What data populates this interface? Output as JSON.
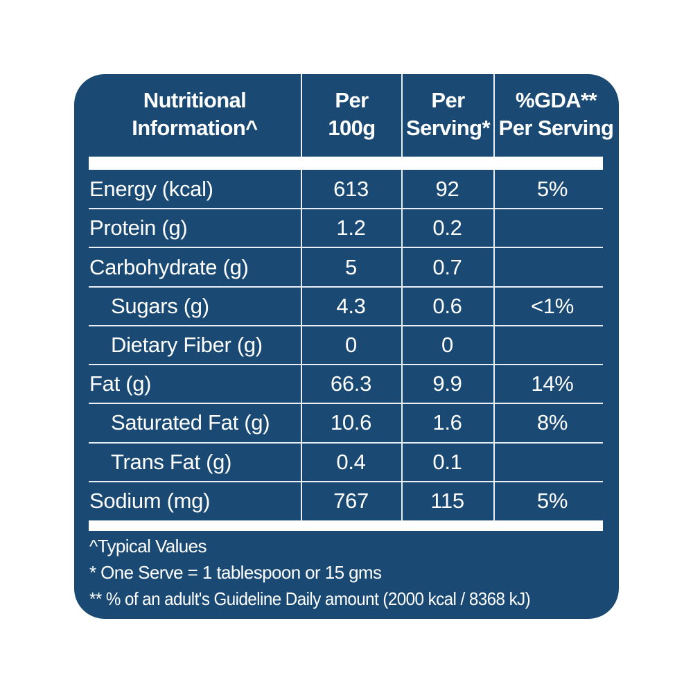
{
  "colors": {
    "card_background": "#1a4a73",
    "text": "#ffffff",
    "grid_line": "#e9eff5",
    "bar": "#ffffff",
    "page_background": "#ffffff"
  },
  "header": {
    "columns": [
      {
        "line1": "Nutritional",
        "line2": "Information^"
      },
      {
        "line1": "Per",
        "line2": "100g"
      },
      {
        "line1": "Per",
        "line2": "Serving*"
      },
      {
        "line1": "%GDA**",
        "line2": "Per Serving"
      }
    ]
  },
  "table": {
    "rows": [
      {
        "label": "Energy (kcal)",
        "per_100g": "613",
        "per_serving": "92",
        "gda": "5%"
      },
      {
        "label": "Protein (g)",
        "per_100g": "1.2",
        "per_serving": "0.2",
        "gda": ""
      },
      {
        "label": "Carbohydrate (g)",
        "per_100g": "5",
        "per_serving": "0.7",
        "gda": ""
      },
      {
        "label": "Sugars (g)",
        "per_100g": "4.3",
        "per_serving": "0.6",
        "gda": "<1%"
      },
      {
        "label": "Dietary Fiber (g)",
        "per_100g": "0",
        "per_serving": "0",
        "gda": ""
      },
      {
        "label": "Fat (g)",
        "per_100g": "66.3",
        "per_serving": "9.9",
        "gda": "14%"
      },
      {
        "label": "Saturated Fat (g)",
        "per_100g": "10.6",
        "per_serving": "1.6",
        "gda": "8%"
      },
      {
        "label": "Trans Fat (g)",
        "per_100g": "0.4",
        "per_serving": "0.1",
        "gda": ""
      },
      {
        "label": "Sodium (mg)",
        "per_100g": "767",
        "per_serving": "115",
        "gda": "5%"
      }
    ]
  },
  "footnotes": [
    "^Typical Values",
    "* One Serve = 1 tablespoon or 15 gms",
    "** % of an adult's Guideline Daily amount (2000 kcal / 8368 kJ)"
  ]
}
